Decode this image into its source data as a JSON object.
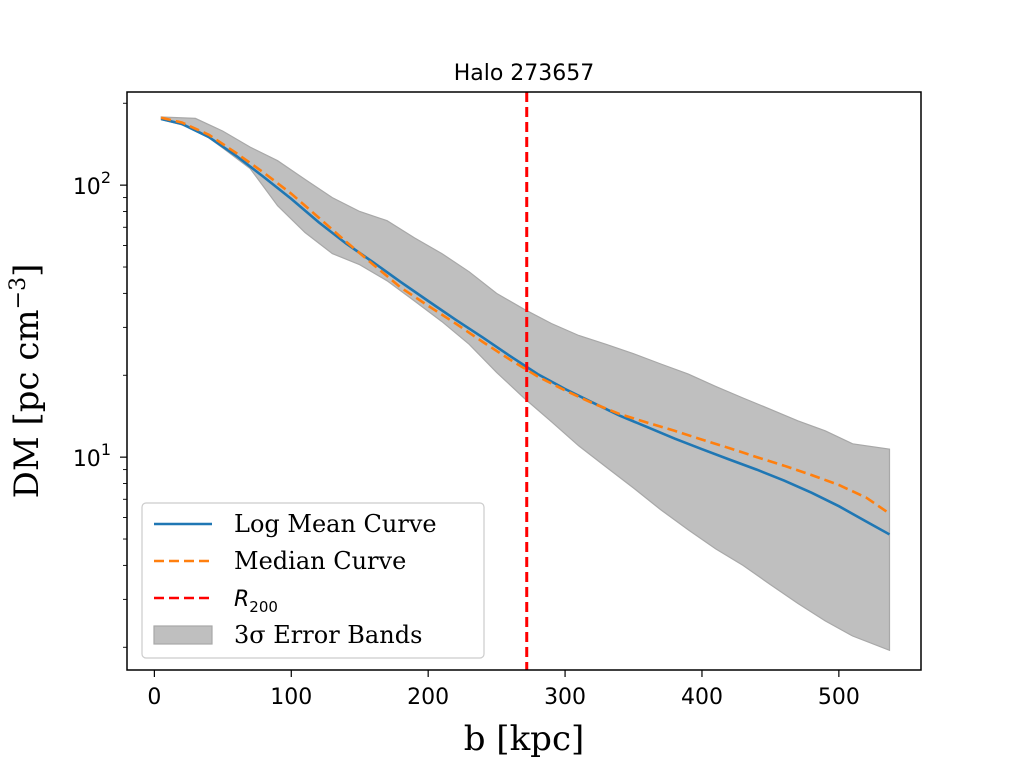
{
  "chart_data": {
    "type": "line",
    "title": "Halo 273657",
    "xlabel": "b [kpc]",
    "ylabel": "DM [pc cm",
    "ylabel_exp": "−3",
    "ylabel_close": "]",
    "xlim": [
      -20,
      560
    ],
    "ylim": [
      1.65,
      220
    ],
    "yscale": "log",
    "grid": false,
    "legend_position": "lower-left",
    "x_ticks": [
      0,
      100,
      200,
      300,
      400,
      500
    ],
    "y_ticks": [
      {
        "value": 10,
        "base": "10",
        "exp": "1"
      },
      {
        "value": 100,
        "base": "10",
        "exp": "2"
      }
    ],
    "series": [
      {
        "name": "Log Mean Curve",
        "style": "solid",
        "color": "#1f77b4",
        "x": [
          5,
          20,
          40,
          60,
          80,
          100,
          120,
          140,
          160,
          180,
          200,
          220,
          240,
          260,
          280,
          300,
          320,
          340,
          360,
          380,
          400,
          420,
          440,
          460,
          480,
          500,
          520,
          537
        ],
        "y": [
          175,
          168,
          150,
          128,
          107,
          89,
          73,
          61,
          52,
          44,
          37.5,
          32,
          27.5,
          23.5,
          20.2,
          17.8,
          15.9,
          14.2,
          12.9,
          11.7,
          10.7,
          9.8,
          9.0,
          8.2,
          7.4,
          6.6,
          5.8,
          5.2
        ]
      },
      {
        "name": "Median Curve",
        "style": "dashed",
        "color": "#ff7f0e",
        "x": [
          5,
          20,
          40,
          60,
          80,
          100,
          120,
          140,
          160,
          180,
          200,
          220,
          240,
          260,
          280,
          300,
          320,
          340,
          360,
          380,
          400,
          420,
          440,
          460,
          480,
          500,
          520,
          537
        ],
        "y": [
          177,
          170,
          153,
          131,
          111,
          93,
          76,
          62,
          51,
          42,
          36,
          31,
          26.5,
          22.8,
          19.8,
          17.6,
          15.8,
          14.4,
          13.4,
          12.5,
          11.6,
          10.8,
          10.0,
          9.3,
          8.6,
          7.9,
          7.1,
          6.2
        ]
      },
      {
        "name": "R_200",
        "style": "dashed",
        "color": "#ff0000",
        "x_value": 272
      }
    ],
    "band": {
      "name": "3σ Error Bands",
      "color": "#bfbfbf",
      "x": [
        5,
        30,
        50,
        70,
        90,
        110,
        130,
        150,
        170,
        190,
        210,
        230,
        250,
        270,
        290,
        310,
        330,
        350,
        370,
        390,
        410,
        430,
        450,
        470,
        490,
        510,
        537
      ],
      "upper": [
        178,
        176,
        158,
        138,
        123,
        105,
        90,
        80,
        74,
        64,
        56,
        48,
        40,
        35,
        31,
        28,
        26,
        24,
        22,
        20.2,
        18.2,
        16.5,
        15,
        13.6,
        12.5,
        11.2,
        10.7
      ],
      "lower": [
        174,
        162,
        137,
        115,
        84,
        67,
        56,
        51,
        44.5,
        37.5,
        31.5,
        26,
        20.5,
        16.5,
        13.5,
        11,
        9.2,
        7.7,
        6.4,
        5.4,
        4.6,
        4.0,
        3.4,
        2.9,
        2.5,
        2.2,
        1.95
      ]
    },
    "legend": [
      {
        "label": "Log Mean Curve",
        "type": "line-solid",
        "color": "#1f77b4"
      },
      {
        "label": "Median Curve",
        "type": "line-dashed",
        "color": "#ff7f0e"
      },
      {
        "label_main": "R",
        "label_sub": "200",
        "type": "line-dashed",
        "color": "#ff0000"
      },
      {
        "label": "3σ Error Bands",
        "type": "patch",
        "color": "#bfbfbf"
      }
    ]
  }
}
